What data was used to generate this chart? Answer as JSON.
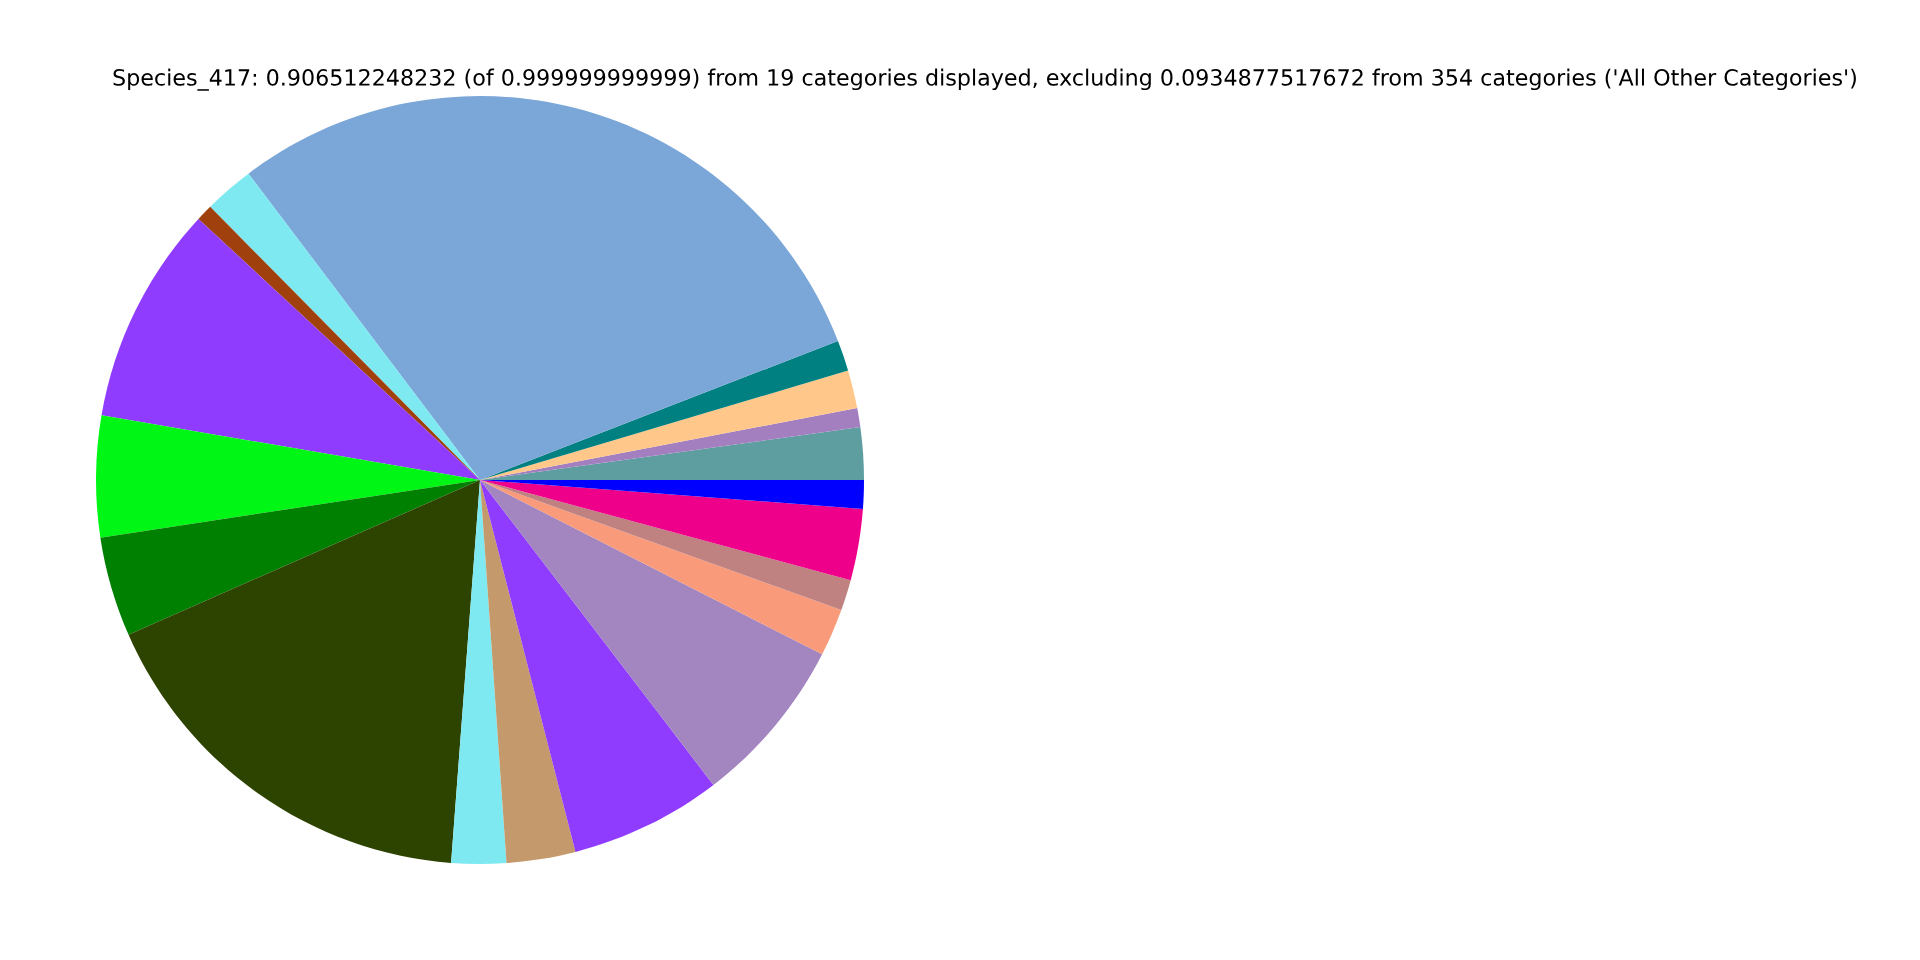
{
  "chart_data": {
    "type": "pie",
    "title": "Species_417: 0.906512248232 (of 0.999999999999) from 19 categories displayed, excluding 0.0934877517672 from 354 categories ('All Other Categories')",
    "categories": [
      null,
      null,
      null,
      null,
      null,
      null,
      null,
      null,
      null,
      null,
      null,
      null,
      null,
      null,
      null,
      null,
      null,
      null,
      null
    ],
    "values": [
      2.2,
      0.8,
      1.6,
      1.3,
      29.4,
      2.1,
      0.7,
      9.2,
      5.1,
      4.2,
      17.2,
      2.3,
      2.9,
      6.4,
      7.1,
      2.0,
      1.3,
      3.0,
      1.2
    ],
    "colors": [
      "#5f9ea0",
      "#a37fc0",
      "#ffc88a",
      "#008080",
      "#7ba7d8",
      "#7fe9f2",
      "#a0410d",
      "#8f3cff",
      "#00f715",
      "#008000",
      "#2d4300",
      "#7fe9f2",
      "#c49a6c",
      "#8f3cff",
      "#a385c0",
      "#f99a7a",
      "#c08181",
      "#ee008b",
      "#0000ff"
    ]
  }
}
